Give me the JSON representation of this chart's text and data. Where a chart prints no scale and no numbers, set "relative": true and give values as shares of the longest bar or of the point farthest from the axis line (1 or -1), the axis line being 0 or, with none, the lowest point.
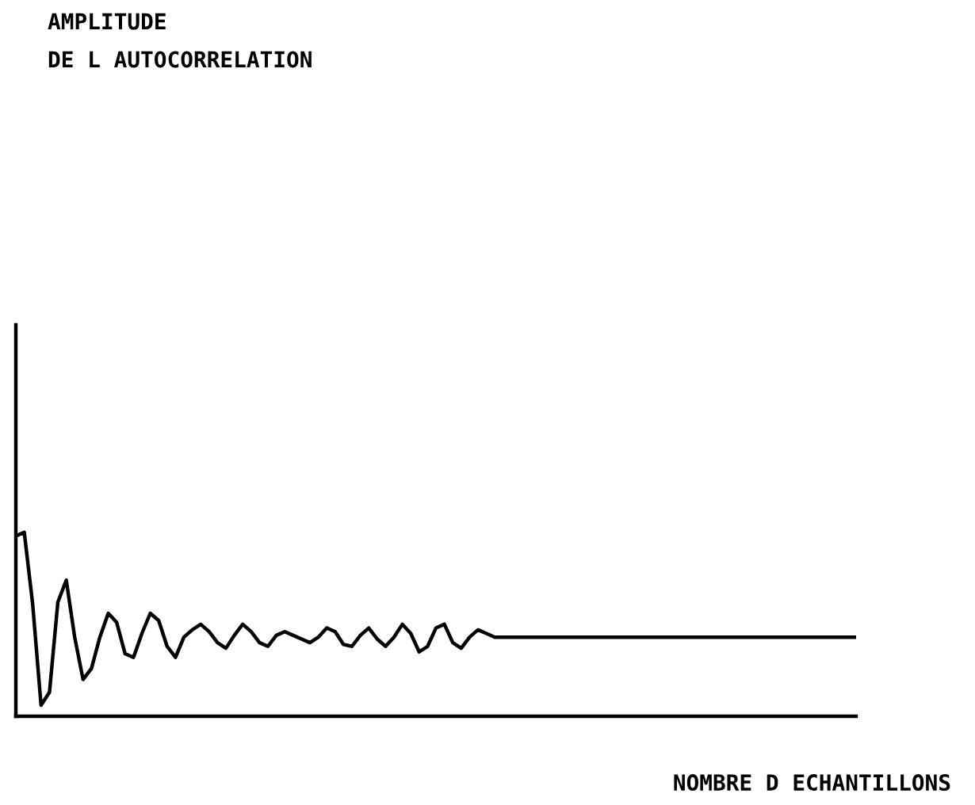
{
  "chart_data": {
    "type": "line",
    "relative": true,
    "title": "AMPLITUDE\nDE L AUTOCORRELATION",
    "xlabel": "NOMBRE D ECHANTILLONS",
    "categories": [
      null,
      null,
      null,
      null,
      null,
      null,
      null,
      null,
      null,
      null,
      null,
      null,
      null,
      null,
      null,
      null,
      null,
      null,
      null,
      null,
      null,
      null,
      null,
      null,
      null,
      null,
      null,
      null,
      null,
      null,
      null,
      null,
      null,
      null,
      null,
      null,
      null,
      null,
      null,
      null,
      null,
      null,
      null,
      null,
      null,
      null,
      null,
      null,
      null,
      null,
      null,
      null,
      null,
      null,
      null,
      null,
      null,
      null,
      null,
      null,
      null,
      null,
      null,
      null,
      null,
      null,
      null,
      null,
      null,
      null,
      null,
      null,
      null,
      null,
      null,
      null,
      null,
      null,
      null,
      null,
      null,
      null,
      null,
      null,
      null,
      null,
      null,
      null,
      null,
      null,
      null,
      null,
      null,
      null,
      null,
      null,
      null,
      null,
      null,
      null,
      null
    ],
    "series": [
      {
        "color": "#000000",
        "values": [
          0.98,
          1.0,
          0.61,
          0.06,
          0.13,
          0.62,
          0.74,
          0.43,
          0.2,
          0.26,
          0.43,
          0.56,
          0.51,
          0.34,
          0.32,
          0.45,
          0.56,
          0.52,
          0.38,
          0.32,
          0.43,
          0.47,
          0.5,
          0.46,
          0.4,
          0.37,
          0.44,
          0.5,
          0.46,
          0.4,
          0.38,
          0.44,
          0.46,
          0.44,
          0.42,
          0.4,
          0.43,
          0.48,
          0.46,
          0.39,
          0.38,
          0.44,
          0.48,
          0.42,
          0.38,
          0.43,
          0.5,
          0.45,
          0.35,
          0.38,
          0.48,
          0.5,
          0.4,
          0.37,
          0.43,
          0.47,
          0.45,
          0.43,
          0.43,
          0.43,
          0.43,
          0.43,
          0.43,
          0.43,
          0.43,
          0.43,
          0.43,
          0.43,
          0.43,
          0.43,
          0.43,
          0.43,
          0.43,
          0.43,
          0.43,
          0.43,
          0.43,
          0.43,
          0.43,
          0.43,
          0.43,
          0.43,
          0.43,
          0.43,
          0.43,
          0.43,
          0.43,
          0.43,
          0.43,
          0.43,
          0.43,
          0.43,
          0.43,
          0.43,
          0.43,
          0.43,
          0.43,
          0.43,
          0.43,
          0.43,
          0.43
        ]
      }
    ]
  }
}
